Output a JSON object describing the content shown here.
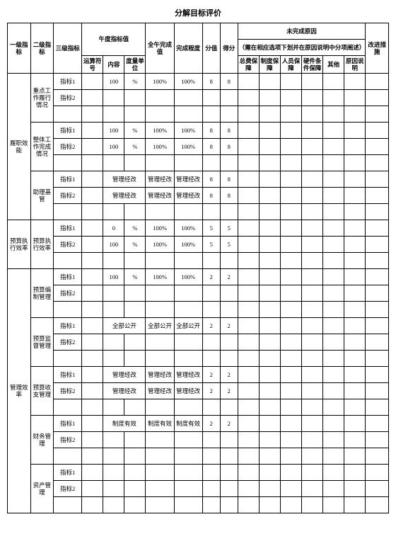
{
  "title": "分解目标评价",
  "headers": {
    "lvl1": "一级指标",
    "lvl2": "二级指标",
    "lvl3": "三级指标",
    "yzTarget": "午度指标值",
    "yzNo": "运算符号",
    "content": "内容",
    "unit": "度量单位",
    "yearComplete": "全午完成值",
    "completeDeg": "完成程度",
    "score": "分值",
    "got": "得分",
    "incomplete": "未完成原因",
    "incompleteNote": "（需在相应选项下划并在原因说明中分项阐述）",
    "improve": "改进措施",
    "r_zy": "总费保障",
    "r_zd": "制度保障",
    "r_ry": "人员保障",
    "r_yj": "硬件条件保障",
    "r_qt": "其他",
    "r_sm": "原因说明"
  },
  "lvl1": {
    "a": "履职效能",
    "b": "预算执行效率",
    "c": "管理效率"
  },
  "lvl2": {
    "a1": "重点工作履行情况",
    "a2": "整体工作完成情况",
    "a3": "助理基管",
    "b1": "预算执行效率",
    "c1": "预算编制管理",
    "c2": "预算监督管理",
    "c3": "预算收支管理",
    "c4": "财务管理",
    "c5": "资产管理"
  },
  "idx1": "指标1",
  "idx2": "指标2",
  "v100": "100",
  "v0": "0",
  "pct": "%",
  "p100": "100%",
  "s8": "8",
  "s5": "5",
  "s2": "2",
  "gljs": "管理经改",
  "qbgk": "全部公开",
  "zdyf": "制度有效"
}
